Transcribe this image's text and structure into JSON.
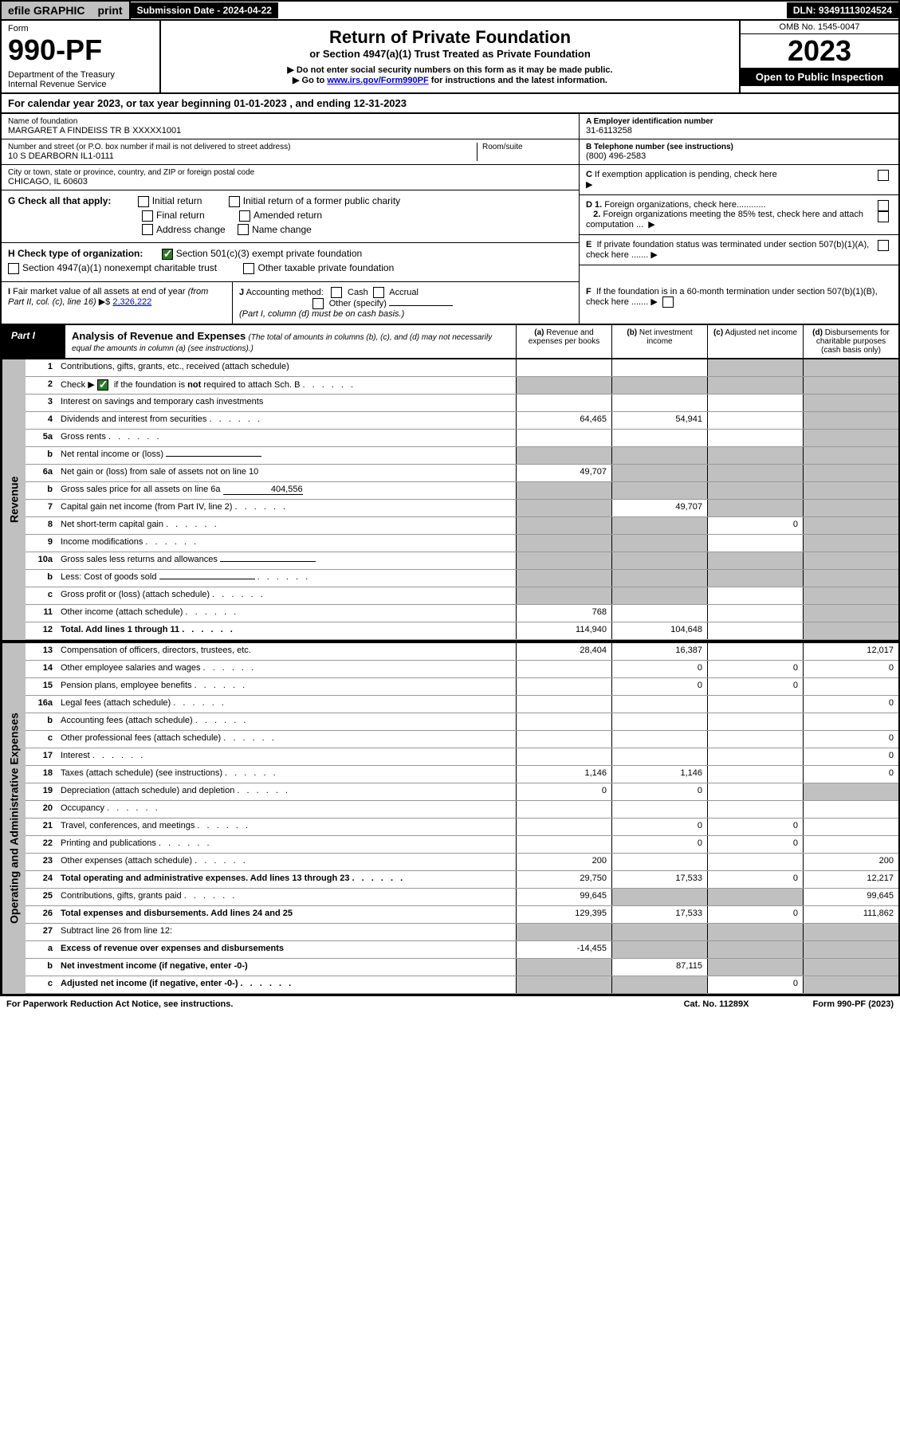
{
  "top": {
    "efile": "efile GRAPHIC",
    "print": "print",
    "sub_label": "Submission Date - 2024-04-22",
    "dln": "DLN: 93491113024524"
  },
  "header": {
    "form_label": "Form",
    "form_no": "990-PF",
    "dept": "Department of the Treasury\nInternal Revenue Service",
    "title": "Return of Private Foundation",
    "subtitle": "or Section 4947(a)(1) Trust Treated as Private Foundation",
    "note1": "▶ Do not enter social security numbers on this form as it may be made public.",
    "note2": "▶ Go to www.irs.gov/Form990PF for instructions and the latest information.",
    "link": "www.irs.gov/Form990PF",
    "omb": "OMB No. 1545-0047",
    "year": "2023",
    "open": "Open to Public Inspection"
  },
  "cal_year": "For calendar year 2023, or tax year beginning 01-01-2023                          , and ending 12-31-2023",
  "info": {
    "name_label": "Name of foundation",
    "name": "MARGARET A FINDEISS TR B XXXXX1001",
    "addr_label": "Number and street (or P.O. box number if mail is not delivered to street address)",
    "addr": "10 S DEARBORN IL1-0111",
    "room_label": "Room/suite",
    "city_label": "City or town, state or province, country, and ZIP or foreign postal code",
    "city": "CHICAGO, IL  60603",
    "ein_label": "A Employer identification number",
    "ein": "31-6113258",
    "phone_label": "B Telephone number (see instructions)",
    "phone": "(800) 496-2583",
    "c": "C If exemption application is pending, check here",
    "d1": "D 1. Foreign organizations, check here............",
    "d2": "2. Foreign organizations meeting the 85% test, check here and attach computation ...",
    "e": "E  If private foundation status was terminated under section 507(b)(1)(A), check here .......",
    "f": "F  If the foundation is in a 60-month termination under section 507(b)(1)(B), check here .......",
    "g_label": "G Check all that apply:",
    "g_items": [
      "Initial return",
      "Initial return of a former public charity",
      "Final return",
      "Amended return",
      "Address change",
      "Name change"
    ],
    "h_label": "H Check type of organization:",
    "h1": "Section 501(c)(3) exempt private foundation",
    "h2": "Section 4947(a)(1) nonexempt charitable trust",
    "h3": "Other taxable private foundation",
    "i_label": "I Fair market value of all assets at end of year (from Part II, col. (c), line 16)",
    "i_val": "2,326,222",
    "j_label": "J Accounting method:",
    "j_cash": "Cash",
    "j_accrual": "Accrual",
    "j_other": "Other (specify)",
    "j_note": "(Part I, column (d) must be on cash basis.)"
  },
  "part1": {
    "label": "Part I",
    "title": "Analysis of Revenue and Expenses",
    "note": "(The total of amounts in columns (b), (c), and (d) may not necessarily equal the amounts in column (a) (see instructions).)",
    "col_a": "(a)   Revenue and expenses per books",
    "col_b": "(b)   Net investment income",
    "col_c": "(c)   Adjusted net income",
    "col_d": "(d)   Disbursements for charitable purposes (cash basis only)"
  },
  "side": {
    "revenue": "Revenue",
    "expenses": "Operating and Administrative Expenses"
  },
  "rows": [
    {
      "n": "1",
      "d": "Contributions, gifts, grants, etc., received (attach schedule)",
      "a": "",
      "b": "",
      "c": "g",
      "dd": "g"
    },
    {
      "n": "2",
      "d": "Check ▶ [✓] if the foundation is not required to attach Sch. B",
      "dots": true,
      "a": "g",
      "b": "g",
      "c": "g",
      "dd": "g"
    },
    {
      "n": "3",
      "d": "Interest on savings and temporary cash investments",
      "a": "",
      "b": "",
      "c": "",
      "dd": "g"
    },
    {
      "n": "4",
      "d": "Dividends and interest from securities",
      "dots": true,
      "a": "64,465",
      "b": "54,941",
      "c": "",
      "dd": "g"
    },
    {
      "n": "5a",
      "d": "Gross rents",
      "dots": true,
      "a": "",
      "b": "",
      "c": "",
      "dd": "g"
    },
    {
      "n": "b",
      "d": "Net rental income or (loss)",
      "under": true,
      "a": "g",
      "b": "g",
      "c": "g",
      "dd": "g"
    },
    {
      "n": "6a",
      "d": "Net gain or (loss) from sale of assets not on line 10",
      "a": "49,707",
      "b": "g",
      "c": "g",
      "dd": "g"
    },
    {
      "n": "b",
      "d": "Gross sales price for all assets on line 6a",
      "val": "404,556",
      "a": "g",
      "b": "g",
      "c": "g",
      "dd": "g"
    },
    {
      "n": "7",
      "d": "Capital gain net income (from Part IV, line 2)",
      "dots": true,
      "a": "g",
      "b": "49,707",
      "c": "g",
      "dd": "g"
    },
    {
      "n": "8",
      "d": "Net short-term capital gain",
      "dots": true,
      "a": "g",
      "b": "g",
      "c": "0",
      "dd": "g"
    },
    {
      "n": "9",
      "d": "Income modifications",
      "dots": true,
      "a": "g",
      "b": "g",
      "c": "",
      "dd": "g"
    },
    {
      "n": "10a",
      "d": "Gross sales less returns and allowances",
      "under": true,
      "a": "g",
      "b": "g",
      "c": "g",
      "dd": "g"
    },
    {
      "n": "b",
      "d": "Less: Cost of goods sold",
      "dots": true,
      "under": true,
      "a": "g",
      "b": "g",
      "c": "g",
      "dd": "g"
    },
    {
      "n": "c",
      "d": "Gross profit or (loss) (attach schedule)",
      "dots": true,
      "a": "g",
      "b": "g",
      "c": "",
      "dd": "g"
    },
    {
      "n": "11",
      "d": "Other income (attach schedule)",
      "dots": true,
      "a": "768",
      "b": "",
      "c": "",
      "dd": "g"
    },
    {
      "n": "12",
      "d": "Total. Add lines 1 through 11",
      "dots": true,
      "bold": true,
      "a": "114,940",
      "b": "104,648",
      "c": "",
      "dd": "g"
    },
    {
      "n": "13",
      "d": "Compensation of officers, directors, trustees, etc.",
      "a": "28,404",
      "b": "16,387",
      "c": "",
      "dd": "12,017"
    },
    {
      "n": "14",
      "d": "Other employee salaries and wages",
      "dots": true,
      "a": "",
      "b": "0",
      "c": "0",
      "dd": "0"
    },
    {
      "n": "15",
      "d": "Pension plans, employee benefits",
      "dots": true,
      "a": "",
      "b": "0",
      "c": "0",
      "dd": ""
    },
    {
      "n": "16a",
      "d": "Legal fees (attach schedule)",
      "dots": true,
      "a": "",
      "b": "",
      "c": "",
      "dd": "0"
    },
    {
      "n": "b",
      "d": "Accounting fees (attach schedule)",
      "dots": true,
      "a": "",
      "b": "",
      "c": "",
      "dd": ""
    },
    {
      "n": "c",
      "d": "Other professional fees (attach schedule)",
      "dots": true,
      "a": "",
      "b": "",
      "c": "",
      "dd": "0"
    },
    {
      "n": "17",
      "d": "Interest",
      "dots": true,
      "a": "",
      "b": "",
      "c": "",
      "dd": "0"
    },
    {
      "n": "18",
      "d": "Taxes (attach schedule) (see instructions)",
      "dots": true,
      "a": "1,146",
      "b": "1,146",
      "c": "",
      "dd": "0"
    },
    {
      "n": "19",
      "d": "Depreciation (attach schedule) and depletion",
      "dots": true,
      "a": "0",
      "b": "0",
      "c": "",
      "dd": "g"
    },
    {
      "n": "20",
      "d": "Occupancy",
      "dots": true,
      "a": "",
      "b": "",
      "c": "",
      "dd": ""
    },
    {
      "n": "21",
      "d": "Travel, conferences, and meetings",
      "dots": true,
      "a": "",
      "b": "0",
      "c": "0",
      "dd": ""
    },
    {
      "n": "22",
      "d": "Printing and publications",
      "dots": true,
      "a": "",
      "b": "0",
      "c": "0",
      "dd": ""
    },
    {
      "n": "23",
      "d": "Other expenses (attach schedule)",
      "dots": true,
      "a": "200",
      "b": "",
      "c": "",
      "dd": "200"
    },
    {
      "n": "24",
      "d": "Total operating and administrative expenses. Add lines 13 through 23",
      "dots": true,
      "bold": true,
      "a": "29,750",
      "b": "17,533",
      "c": "0",
      "dd": "12,217"
    },
    {
      "n": "25",
      "d": "Contributions, gifts, grants paid",
      "dots": true,
      "a": "99,645",
      "b": "g",
      "c": "g",
      "dd": "99,645"
    },
    {
      "n": "26",
      "d": "Total expenses and disbursements. Add lines 24 and 25",
      "bold": true,
      "a": "129,395",
      "b": "17,533",
      "c": "0",
      "dd": "111,862"
    },
    {
      "n": "27",
      "d": "Subtract line 26 from line 12:",
      "a": "g",
      "b": "g",
      "c": "g",
      "dd": "g"
    },
    {
      "n": "a",
      "d": "Excess of revenue over expenses and disbursements",
      "bold": true,
      "a": "-14,455",
      "b": "g",
      "c": "g",
      "dd": "g"
    },
    {
      "n": "b",
      "d": "Net investment income (if negative, enter -0-)",
      "bold": true,
      "a": "g",
      "b": "87,115",
      "c": "g",
      "dd": "g"
    },
    {
      "n": "c",
      "d": "Adjusted net income (if negative, enter -0-)",
      "dots": true,
      "bold": true,
      "a": "g",
      "b": "g",
      "c": "0",
      "dd": "g"
    }
  ],
  "footer": {
    "left": "For Paperwork Reduction Act Notice, see instructions.",
    "mid": "Cat. No. 11289X",
    "right": "Form 990-PF (2023)"
  }
}
